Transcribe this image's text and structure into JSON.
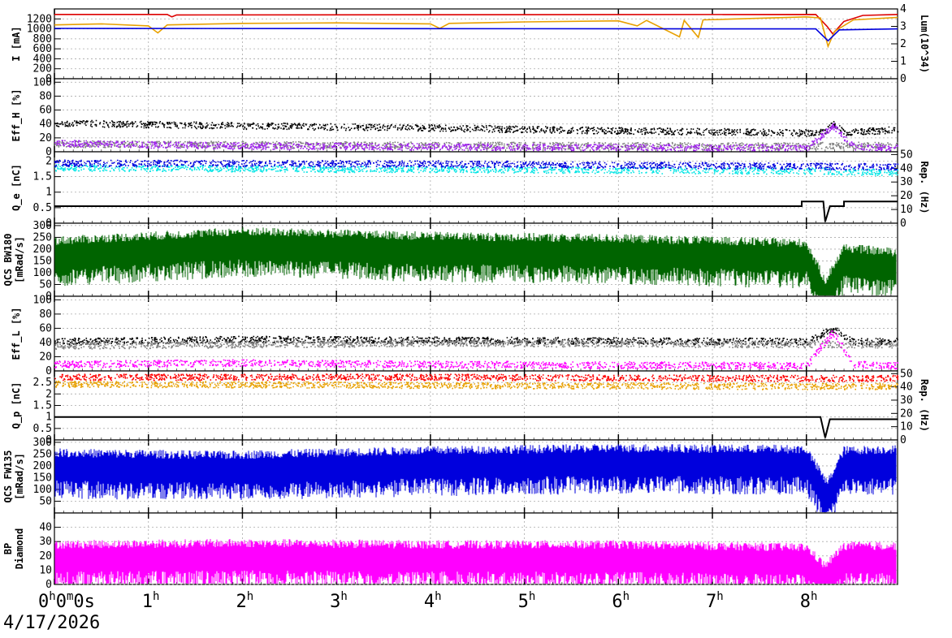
{
  "date_label": "4/17/2026",
  "chart_data": {
    "type": "line",
    "x_axis": {
      "unit": "hours",
      "range": [
        0,
        8.97
      ],
      "ticks": [
        {
          "h": 0,
          "label": "0",
          "sup": "h",
          "extra": "0",
          "extra_sup": "m",
          "extra2": "0s"
        },
        {
          "h": 1,
          "label": "1",
          "sup": "h"
        },
        {
          "h": 2,
          "label": "2",
          "sup": "h"
        },
        {
          "h": 3,
          "label": "3",
          "sup": "h"
        },
        {
          "h": 4,
          "label": "4",
          "sup": "h"
        },
        {
          "h": 5,
          "label": "5",
          "sup": "h"
        },
        {
          "h": 6,
          "label": "6",
          "sup": "h"
        },
        {
          "h": 7,
          "label": "7",
          "sup": "h"
        },
        {
          "h": 8,
          "label": "8",
          "sup": "h"
        }
      ]
    },
    "panels": [
      {
        "id": "current",
        "ylabel": "I [mA]",
        "ylim": [
          0,
          1400
        ],
        "yticks": [
          0,
          200,
          400,
          600,
          800,
          1000,
          1200
        ],
        "y2label": "Lum(10^34)",
        "y2lim": [
          0,
          4
        ],
        "y2ticks": [
          0,
          1,
          2,
          3,
          4
        ],
        "series": [
          {
            "color": "#dd0000",
            "style": "line",
            "points": [
              [
                0,
                1290
              ],
              [
                1.2,
                1290
              ],
              [
                1.25,
                1240
              ],
              [
                1.3,
                1280
              ],
              [
                8.1,
                1290
              ],
              [
                8.22,
                1050
              ],
              [
                8.28,
                900
              ],
              [
                8.4,
                1150
              ],
              [
                8.6,
                1270
              ],
              [
                8.97,
                1290
              ]
            ]
          },
          {
            "color": "#e8a000",
            "style": "line",
            "points": [
              [
                0,
                1080
              ],
              [
                0.5,
                1100
              ],
              [
                1.0,
                1060
              ],
              [
                1.1,
                920
              ],
              [
                1.2,
                1080
              ],
              [
                2.0,
                1110
              ],
              [
                3.0,
                1120
              ],
              [
                4.0,
                1100
              ],
              [
                4.1,
                1010
              ],
              [
                4.2,
                1110
              ],
              [
                5.0,
                1140
              ],
              [
                6.0,
                1160
              ],
              [
                6.2,
                1060
              ],
              [
                6.3,
                1170
              ],
              [
                6.65,
                840
              ],
              [
                6.7,
                1170
              ],
              [
                6.85,
                830
              ],
              [
                6.9,
                1180
              ],
              [
                8.0,
                1240
              ],
              [
                8.15,
                1220
              ],
              [
                8.23,
                650
              ],
              [
                8.3,
                950
              ],
              [
                8.5,
                1180
              ],
              [
                8.97,
                1230
              ]
            ]
          },
          {
            "color": "#0000dd",
            "style": "line",
            "points": [
              [
                0,
                1010
              ],
              [
                8.1,
                1000
              ],
              [
                8.23,
                760
              ],
              [
                8.35,
                980
              ],
              [
                8.97,
                1000
              ]
            ]
          }
        ]
      },
      {
        "id": "eff_h",
        "ylabel": "Eff_H [%]",
        "ylim": [
          0,
          105
        ],
        "yticks": [
          0,
          20,
          40,
          60,
          80,
          100
        ],
        "series": [
          {
            "color": "#000000",
            "style": "dots",
            "points": [
              [
                0,
                42
              ],
              [
                2,
                38
              ],
              [
                4,
                35
              ],
              [
                6,
                31
              ],
              [
                8,
                28
              ],
              [
                8.2,
                29
              ],
              [
                8.28,
                42
              ],
              [
                8.4,
                28
              ],
              [
                8.97,
                33
              ]
            ]
          },
          {
            "color": "#808080",
            "style": "dots",
            "points": [
              [
                0,
                12
              ],
              [
                4,
                10
              ],
              [
                8,
                9
              ],
              [
                8.28,
                10
              ],
              [
                8.97,
                10
              ]
            ]
          },
          {
            "color": "#a020f0",
            "style": "dots",
            "points": [
              [
                0,
                13
              ],
              [
                2,
                9
              ],
              [
                4,
                8
              ],
              [
                6,
                7
              ],
              [
                8,
                6
              ],
              [
                8.28,
                38
              ],
              [
                8.5,
                8
              ],
              [
                8.97,
                6
              ]
            ]
          }
        ]
      },
      {
        "id": "qe",
        "ylabel": "Q_e [nC]",
        "ylim": [
          0,
          2.3
        ],
        "yticks": [
          0,
          0.5,
          1,
          1.5,
          2
        ],
        "y2label": "Rep. (Hz)",
        "y2lim": [
          0,
          52
        ],
        "y2ticks": [
          0,
          10,
          20,
          30,
          40,
          50
        ],
        "series": [
          {
            "color": "#00e5e5",
            "style": "dots",
            "points": [
              [
                0,
                1.8
              ],
              [
                4,
                1.75
              ],
              [
                8,
                1.7
              ],
              [
                8.97,
                1.65
              ]
            ]
          },
          {
            "color": "#0000dd",
            "style": "dots",
            "points": [
              [
                0,
                1.95
              ],
              [
                4,
                1.93
              ],
              [
                8,
                1.85
              ],
              [
                8.97,
                1.83
              ]
            ]
          },
          {
            "color": "#000000",
            "style": "step",
            "points": [
              [
                0,
                0.55
              ],
              [
                7.95,
                0.55
              ],
              [
                7.95,
                0.7
              ],
              [
                8.18,
                0.7
              ],
              [
                8.2,
                0.05
              ],
              [
                8.25,
                0.55
              ],
              [
                8.4,
                0.55
              ],
              [
                8.4,
                0.7
              ],
              [
                8.97,
                0.7
              ]
            ]
          }
        ]
      },
      {
        "id": "qcs_bw180",
        "ylabel": "QCS BW180 [mRad/s]",
        "ylim": [
          0,
          310
        ],
        "yticks": [
          0,
          50,
          100,
          150,
          200,
          250,
          300
        ],
        "series": [
          {
            "color": "#006400",
            "style": "band",
            "points": [
              [
                0,
                180
              ],
              [
                2,
                220
              ],
              [
                4,
                200
              ],
              [
                6,
                190
              ],
              [
                8,
                170
              ],
              [
                8.2,
                10
              ],
              [
                8.4,
                150
              ],
              [
                8.97,
                130
              ]
            ]
          }
        ]
      },
      {
        "id": "eff_l",
        "ylabel": "Eff_L [%]",
        "ylim": [
          0,
          105
        ],
        "yticks": [
          0,
          20,
          40,
          60,
          80,
          100
        ],
        "series": [
          {
            "color": "#000000",
            "style": "dots",
            "points": [
              [
                0,
                42
              ],
              [
                2,
                45
              ],
              [
                4,
                44
              ],
              [
                6,
                43
              ],
              [
                8,
                42
              ],
              [
                8.28,
                60
              ],
              [
                8.5,
                42
              ],
              [
                8.97,
                42
              ]
            ]
          },
          {
            "color": "#808080",
            "style": "dots",
            "points": [
              [
                0,
                36
              ],
              [
                4,
                40
              ],
              [
                8,
                38
              ],
              [
                8.97,
                38
              ]
            ]
          },
          {
            "color": "#ff00ff",
            "style": "dots",
            "points": [
              [
                0,
                10
              ],
              [
                2,
                12
              ],
              [
                4,
                10
              ],
              [
                6,
                9
              ],
              [
                8,
                8
              ],
              [
                8.28,
                55
              ],
              [
                8.5,
                10
              ],
              [
                8.97,
                8
              ]
            ]
          }
        ]
      },
      {
        "id": "qp",
        "ylabel": "Q_p [nC]",
        "ylim": [
          0,
          3.0
        ],
        "yticks": [
          0,
          0.5,
          1,
          1.5,
          2,
          2.5
        ],
        "y2label": "Rep. (Hz)",
        "y2lim": [
          0,
          52
        ],
        "y2ticks": [
          0,
          10,
          20,
          30,
          40,
          50
        ],
        "series": [
          {
            "color": "#ff0000",
            "style": "dots",
            "points": [
              [
                0,
                2.75
              ],
              [
                4,
                2.75
              ],
              [
                8,
                2.7
              ],
              [
                8.97,
                2.7
              ]
            ]
          },
          {
            "color": "#e8a000",
            "style": "dots",
            "points": [
              [
                0,
                2.45
              ],
              [
                4,
                2.4
              ],
              [
                8,
                2.35
              ],
              [
                8.97,
                2.35
              ]
            ]
          },
          {
            "color": "#000000",
            "style": "step",
            "points": [
              [
                0,
                1.0
              ],
              [
                8.15,
                1.0
              ],
              [
                8.2,
                0.1
              ],
              [
                8.25,
                0.9
              ],
              [
                8.97,
                0.9
              ]
            ]
          }
        ]
      },
      {
        "id": "qcs_fw135",
        "ylabel": "QCS FW135 [mRad/s]",
        "ylim": [
          0,
          310
        ],
        "yticks": [
          50,
          100,
          150,
          200,
          250,
          300
        ],
        "series": [
          {
            "color": "#0000dd",
            "style": "band",
            "points": [
              [
                0,
                200
              ],
              [
                1.8,
                190
              ],
              [
                4,
                210
              ],
              [
                6,
                220
              ],
              [
                8,
                215
              ],
              [
                8.22,
                70
              ],
              [
                8.4,
                210
              ],
              [
                8.97,
                215
              ]
            ]
          }
        ]
      },
      {
        "id": "bp_diamond",
        "ylabel": "BP Diamond",
        "ylim": [
          0,
          50
        ],
        "yticks": [
          0,
          10,
          20,
          30,
          40
        ],
        "series": [
          {
            "color": "#ff00ff",
            "style": "band",
            "points": [
              [
                0,
                19
              ],
              [
                2,
                20
              ],
              [
                4,
                19
              ],
              [
                6,
                19
              ],
              [
                8,
                17
              ],
              [
                8.2,
                4
              ],
              [
                8.4,
                18
              ],
              [
                8.97,
                18
              ]
            ]
          }
        ]
      }
    ]
  }
}
